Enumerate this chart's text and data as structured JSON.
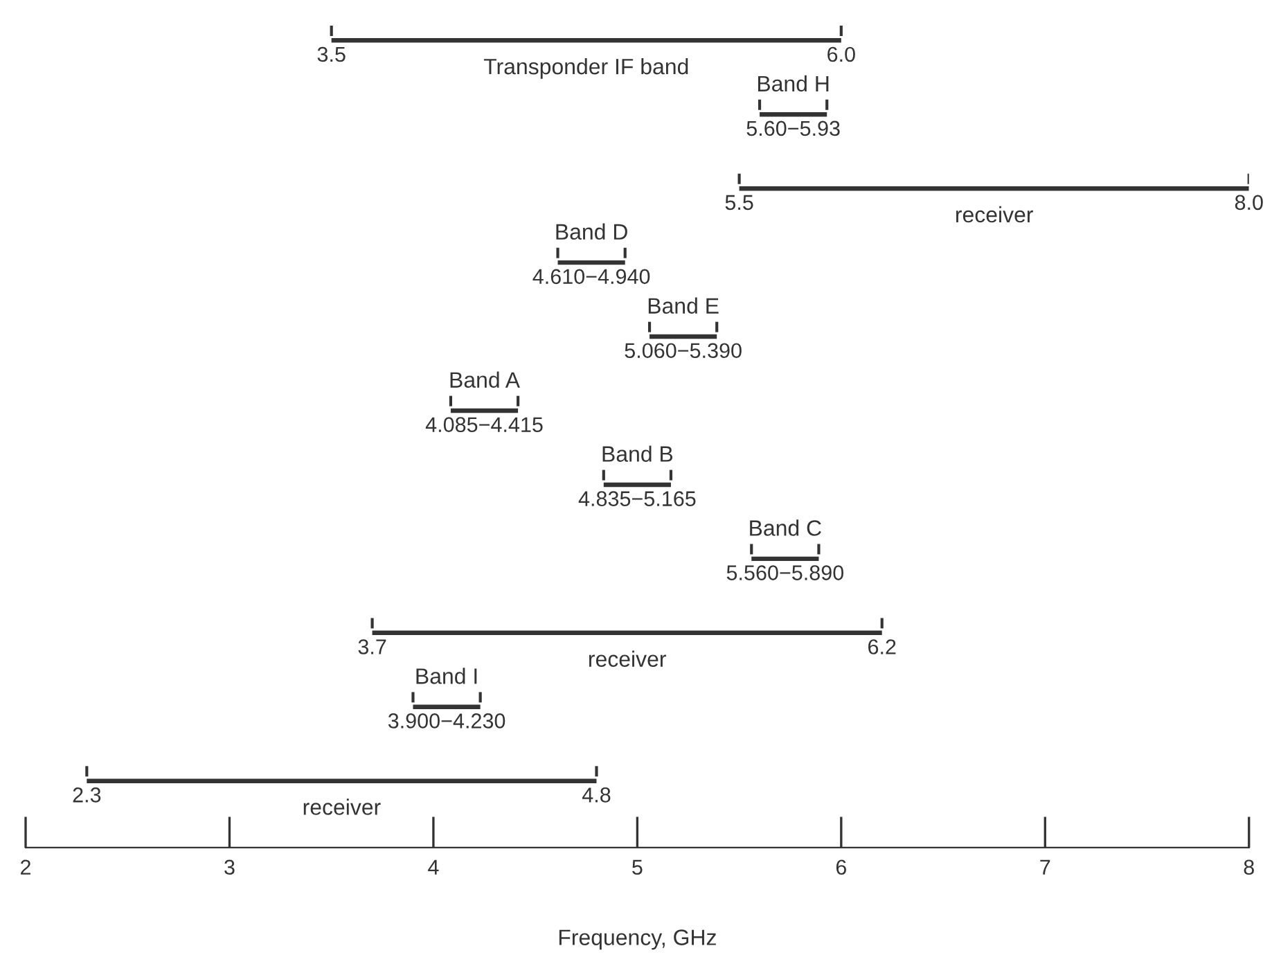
{
  "chart_data": {
    "type": "bar",
    "orientation": "horizontal",
    "xlabel": "Frequency, GHz",
    "xlim": [
      2,
      8
    ],
    "xticks": [
      2,
      3,
      4,
      5,
      6,
      7,
      8
    ],
    "grid": false,
    "legend": false,
    "categories": [
      null,
      null,
      null,
      null,
      null,
      null,
      null,
      null,
      null,
      null,
      null
    ],
    "series": [
      {
        "color": "#333333",
        "base": [
          3.5,
          5.6,
          5.5,
          4.61,
          5.06,
          4.085,
          4.835,
          5.56,
          3.7,
          3.9,
          2.3
        ],
        "values": [
          2.5,
          0.33,
          2.5,
          0.33,
          0.33,
          0.33,
          0.33,
          0.33,
          2.5,
          0.33,
          2.5
        ]
      }
    ],
    "annotations": [
      "3.5",
      "6.0",
      "Transponder IF band",
      "Band H",
      "5.60−5.93",
      "5.5",
      "8.0",
      "receiver",
      "Band D",
      "4.610−4.940",
      "Band E",
      "5.060−5.390",
      "Band A",
      "4.085−4.415",
      "Band B",
      "4.835−5.165",
      "Band C",
      "5.560−5.890",
      "3.7",
      "6.2",
      "receiver",
      "Band I",
      "3.900−4.230",
      "2.3",
      "4.8",
      "receiver"
    ]
  }
}
